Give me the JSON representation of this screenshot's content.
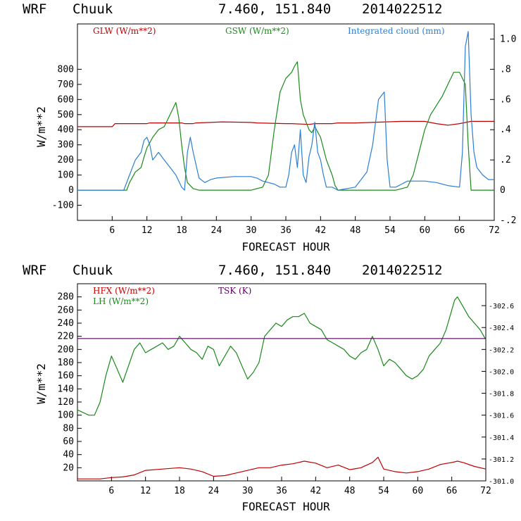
{
  "header1": {
    "model": "WRF",
    "station": "Chuuk",
    "coords": "7.460, 151.840",
    "init": "2014022512"
  },
  "header2": {
    "model": "WRF",
    "station": "Chuuk",
    "coords": "7.460, 151.840",
    "init": "2014022512"
  },
  "colors": {
    "red": "#c00000",
    "green": "#1a8a1a",
    "blue": "#2a7fd4",
    "purple": "#5c0060"
  },
  "chart_data": [
    {
      "type": "line",
      "xlabel": "FORECAST HOUR",
      "ylabel": "W/m**2",
      "xlim": [
        0,
        72
      ],
      "ylim": [
        -200,
        1100
      ],
      "y2lim": [
        -0.2,
        1.1
      ],
      "x_ticks": [
        "6",
        "12",
        "18",
        "24",
        "30",
        "36",
        "42",
        "48",
        "54",
        "60",
        "66",
        "72"
      ],
      "y_ticks": [
        "-100",
        "0",
        "100",
        "200",
        "300",
        "400",
        "500",
        "600",
        "700",
        "800"
      ],
      "y2_ticks": [
        "-.2",
        "0",
        ".2",
        ".4",
        ".6",
        ".8",
        "1.0"
      ],
      "legend_labels": [
        "GLW (W/m**2)",
        "GSW (W/m**2)",
        "Integrated cloud (mm)"
      ],
      "series": [
        {
          "name": "GLW (W/m**2)",
          "color": "red",
          "axis": "left",
          "x": [
            0,
            6,
            6.5,
            12,
            12.5,
            18,
            18.5,
            20,
            20.5,
            24,
            25,
            30,
            31,
            36,
            37,
            40,
            41,
            44,
            45,
            48,
            52,
            56,
            60,
            62,
            64,
            66,
            68,
            72
          ],
          "y": [
            420,
            420,
            440,
            440,
            445,
            445,
            440,
            440,
            445,
            450,
            452,
            448,
            445,
            440,
            440,
            435,
            440,
            440,
            445,
            445,
            450,
            455,
            455,
            440,
            430,
            440,
            455,
            455
          ]
        },
        {
          "name": "GSW (W/m**2)",
          "color": "green",
          "axis": "left",
          "x": [
            0,
            8.5,
            9,
            10,
            11,
            11.5,
            12,
            13,
            14,
            15,
            16,
            17,
            17.5,
            18,
            18.5,
            19,
            20,
            21,
            22,
            30,
            32,
            33,
            34,
            35,
            36,
            37,
            37.5,
            38,
            38.5,
            39,
            40,
            40.5,
            41,
            42,
            43,
            44,
            44.5,
            45,
            55,
            57,
            58,
            59,
            60,
            61,
            62,
            63,
            64,
            65,
            66,
            67,
            67.5,
            68,
            72
          ],
          "y": [
            0,
            0,
            50,
            120,
            150,
            220,
            280,
            350,
            400,
            420,
            500,
            580,
            480,
            300,
            150,
            50,
            10,
            0,
            0,
            0,
            20,
            100,
            400,
            650,
            740,
            780,
            820,
            850,
            600,
            500,
            400,
            380,
            420,
            350,
            200,
            100,
            30,
            0,
            0,
            20,
            100,
            250,
            400,
            500,
            560,
            620,
            700,
            780,
            780,
            700,
            300,
            0,
            0
          ]
        },
        {
          "name": "Integrated cloud (mm)",
          "color": "blue",
          "axis": "right",
          "x": [
            0,
            8,
            9,
            10,
            11,
            11.5,
            12,
            12.5,
            13,
            14,
            15,
            16,
            17,
            18,
            18.5,
            19,
            19.5,
            20,
            21,
            22,
            23,
            24,
            27,
            30,
            31,
            32,
            33,
            34,
            35,
            36,
            36.5,
            37,
            37.5,
            38,
            38.5,
            39,
            39.5,
            40,
            40.5,
            41,
            41.5,
            42,
            42.5,
            43,
            44,
            45,
            48,
            50,
            51,
            52,
            53,
            53.5,
            54,
            55,
            56,
            57,
            60,
            62,
            64,
            66,
            66.5,
            67,
            67.5,
            68,
            68.5,
            69,
            70,
            71,
            72
          ],
          "y": [
            0,
            0,
            0.1,
            0.2,
            0.25,
            0.33,
            0.35,
            0.3,
            0.2,
            0.25,
            0.2,
            0.15,
            0.1,
            0.02,
            0.0,
            0.25,
            0.35,
            0.25,
            0.08,
            0.05,
            0.07,
            0.08,
            0.09,
            0.09,
            0.08,
            0.06,
            0.05,
            0.04,
            0.02,
            0.02,
            0.1,
            0.25,
            0.3,
            0.15,
            0.4,
            0.1,
            0.05,
            0.22,
            0.3,
            0.45,
            0.25,
            0.2,
            0.1,
            0.02,
            0.02,
            0.0,
            0.02,
            0.12,
            0.3,
            0.6,
            0.65,
            0.2,
            0.02,
            0.02,
            0.04,
            0.06,
            0.06,
            0.05,
            0.03,
            0.02,
            0.25,
            0.95,
            1.05,
            0.5,
            0.25,
            0.15,
            0.1,
            0.07,
            0.07
          ]
        }
      ]
    },
    {
      "type": "line",
      "xlabel": "FORECAST HOUR",
      "ylabel": "W/m**2",
      "xlim": [
        0,
        72
      ],
      "ylim": [
        0,
        300
      ],
      "y2lim": [
        301.0,
        302.8
      ],
      "x_ticks": [
        "6",
        "12",
        "18",
        "24",
        "30",
        "36",
        "42",
        "48",
        "54",
        "60",
        "66",
        "72"
      ],
      "y_ticks": [
        "20",
        "40",
        "60",
        "80",
        "100",
        "120",
        "140",
        "160",
        "180",
        "200",
        "220",
        "240",
        "260",
        "280"
      ],
      "y2_ticks": [
        "301.0",
        "301.2",
        "301.4",
        "301.6",
        "301.8",
        "302.0",
        "302.2",
        "302.4",
        "302.6"
      ],
      "legend_labels": [
        "HFX (W/m**2)",
        "LH  (W/m**2)",
        "TSK (K)"
      ],
      "series": [
        {
          "name": "HFX (W/m**2)",
          "color": "red",
          "axis": "left",
          "x": [
            0,
            4,
            6,
            8,
            10,
            12,
            15,
            18,
            20,
            22,
            24,
            26,
            28,
            30,
            32,
            34,
            36,
            38,
            40,
            42,
            44,
            46,
            48,
            50,
            52,
            53,
            54,
            56,
            58,
            60,
            62,
            64,
            66,
            67,
            68,
            70,
            72
          ],
          "y": [
            3,
            3,
            5,
            6,
            9,
            16,
            18,
            20,
            18,
            14,
            7,
            8,
            12,
            16,
            20,
            20,
            24,
            26,
            30,
            27,
            20,
            24,
            17,
            20,
            28,
            36,
            18,
            14,
            12,
            14,
            18,
            25,
            28,
            30,
            28,
            22,
            18
          ]
        },
        {
          "name": "LH  (W/m**2)",
          "color": "green",
          "axis": "left",
          "x": [
            0,
            2,
            3,
            4,
            5,
            6,
            7,
            8,
            9,
            10,
            11,
            12,
            13,
            14,
            15,
            16,
            17,
            18,
            19,
            20,
            21,
            22,
            23,
            24,
            25,
            26,
            27,
            28,
            29,
            30,
            31,
            32,
            33,
            34,
            35,
            36,
            37,
            38,
            39,
            40,
            41,
            42,
            43,
            44,
            45,
            46,
            47,
            48,
            49,
            50,
            51,
            52,
            53,
            54,
            55,
            56,
            57,
            58,
            59,
            60,
            61,
            62,
            63,
            64,
            65,
            66,
            66.5,
            67,
            68,
            69,
            70,
            71,
            72
          ],
          "y": [
            108,
            100,
            100,
            120,
            160,
            190,
            170,
            150,
            175,
            200,
            210,
            195,
            200,
            205,
            210,
            200,
            205,
            220,
            210,
            200,
            195,
            185,
            205,
            200,
            175,
            190,
            205,
            195,
            175,
            155,
            165,
            180,
            220,
            230,
            240,
            235,
            245,
            250,
            250,
            255,
            240,
            235,
            230,
            215,
            210,
            205,
            200,
            190,
            185,
            195,
            200,
            220,
            200,
            175,
            185,
            180,
            170,
            160,
            155,
            160,
            170,
            190,
            200,
            210,
            230,
            260,
            275,
            280,
            265,
            250,
            240,
            230,
            215
          ]
        },
        {
          "name": "TSK (K)",
          "color": "purple",
          "axis": "right",
          "x": [
            0,
            72
          ],
          "y": [
            302.3,
            302.3
          ]
        }
      ]
    }
  ]
}
